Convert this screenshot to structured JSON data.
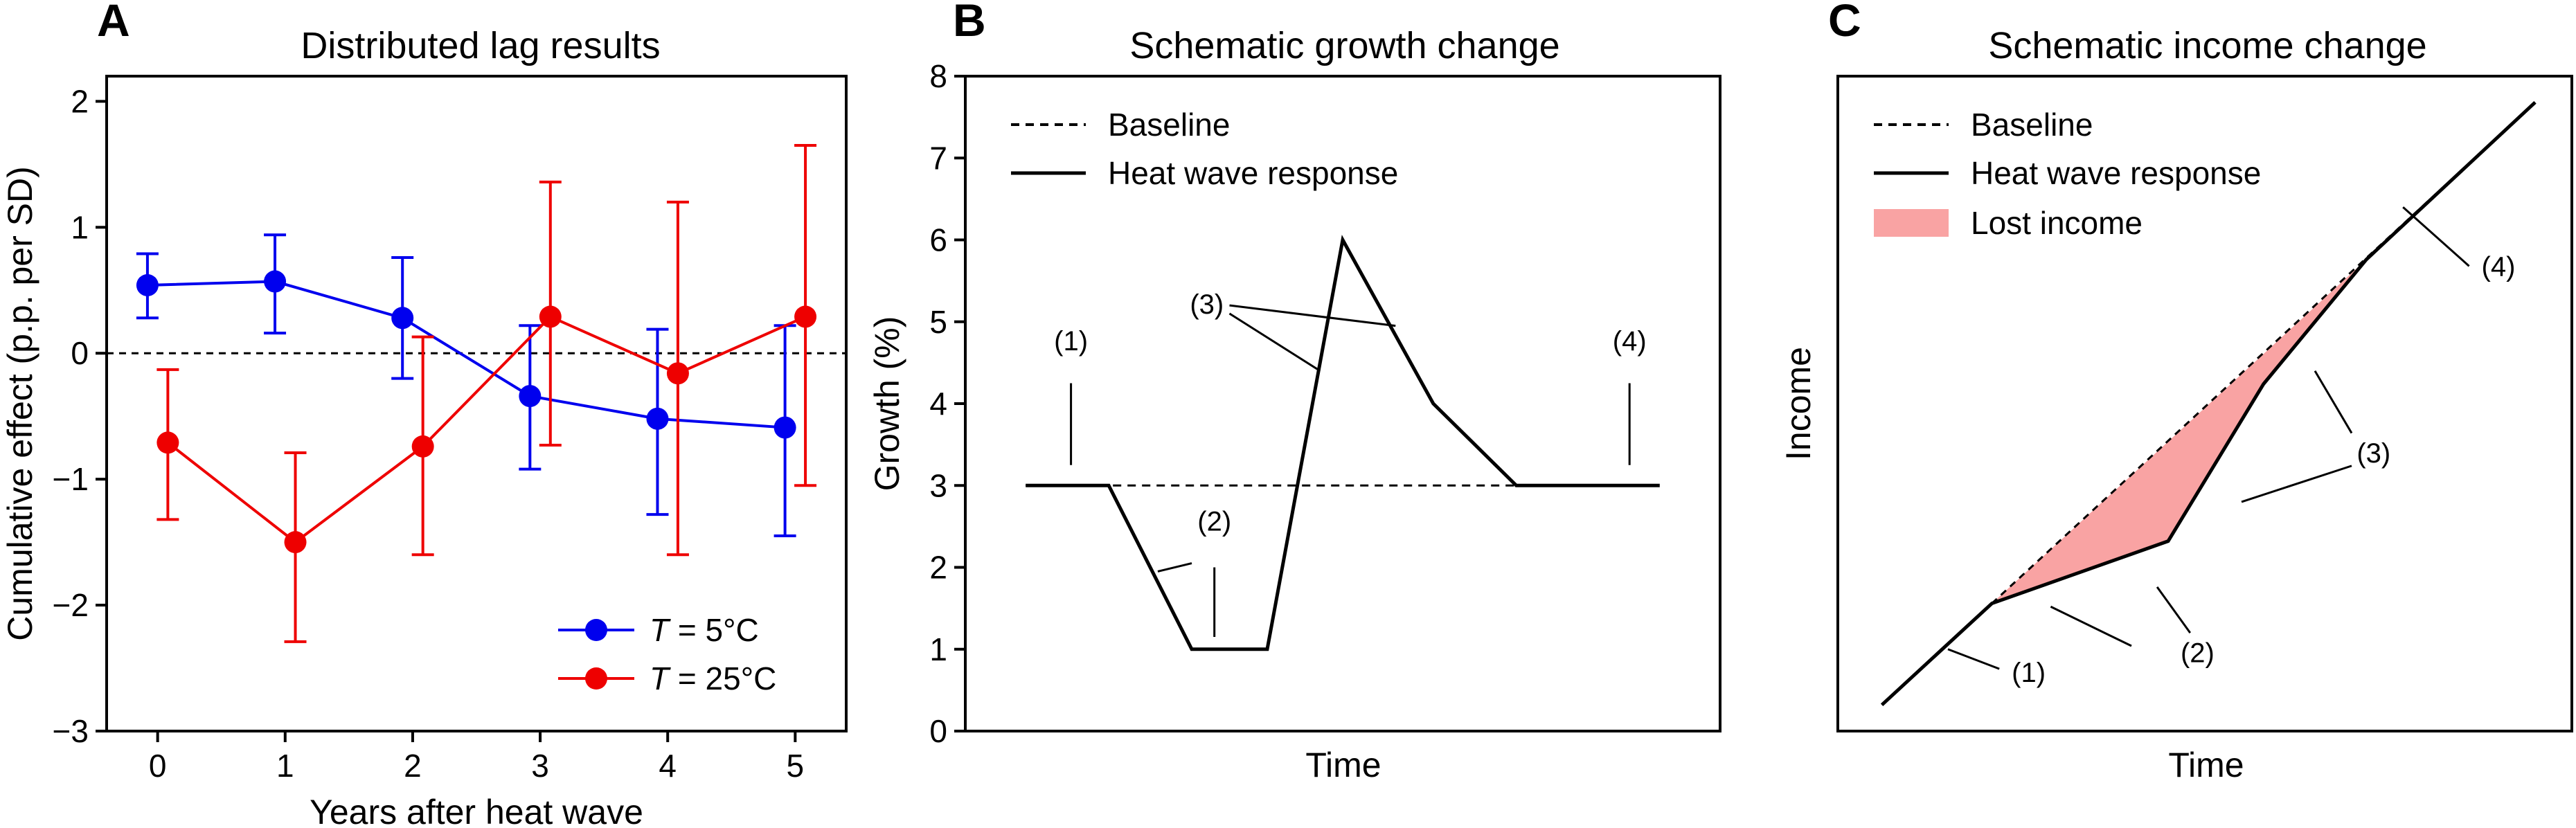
{
  "panels": {
    "a": {
      "label": "A",
      "title": "Distributed lag results"
    },
    "b": {
      "label": "B",
      "title": "Schematic growth change"
    },
    "c": {
      "label": "C",
      "title": "Schematic income change"
    }
  },
  "chart_data": [
    {
      "type": "line",
      "title": "Distributed lag results",
      "xlabel": "Years after heat wave",
      "ylabel": "Cumulative effect (p.p. per SD)",
      "xlim": [
        -0.4,
        5.4
      ],
      "ylim": [
        -3,
        2.2
      ],
      "xticks": [
        0,
        1,
        2,
        3,
        4,
        5
      ],
      "yticks": [
        -3,
        -2,
        -1,
        0,
        1,
        2
      ],
      "ytick_labels": [
        "−3",
        "−2",
        "−1",
        "0",
        "1",
        "2"
      ],
      "reference_line": {
        "y": 0,
        "style": "dashed"
      },
      "legend_position": "bottom-right",
      "series": [
        {
          "name_prefix": "T",
          "name_suffix": " = 5°C",
          "color": "#0000ee",
          "x": [
            0,
            1,
            2,
            3,
            4,
            5
          ],
          "x_offset": -0.08,
          "y": [
            0.54,
            0.57,
            0.28,
            -0.34,
            -0.52,
            -0.59
          ],
          "err_low": [
            0.28,
            0.16,
            -0.2,
            -0.92,
            -1.28,
            -1.45
          ],
          "err_high": [
            0.79,
            0.94,
            0.76,
            0.22,
            0.19,
            0.22
          ]
        },
        {
          "name_prefix": "T",
          "name_suffix": " = 25°C",
          "color": "#ee0000",
          "x": [
            0,
            1,
            2,
            3,
            4,
            5
          ],
          "x_offset": 0.08,
          "y": [
            -0.71,
            -1.5,
            -0.74,
            0.29,
            -0.16,
            0.29
          ],
          "err_low": [
            -1.32,
            -2.29,
            -1.6,
            -0.73,
            -1.6,
            -1.05
          ],
          "err_high": [
            -0.13,
            -0.79,
            0.13,
            1.36,
            1.2,
            1.65
          ]
        }
      ]
    },
    {
      "type": "line",
      "title": "Schematic growth change",
      "xlabel": "Time",
      "ylabel": "Growth (%)",
      "xlim": [
        0,
        10
      ],
      "ylim": [
        0,
        8
      ],
      "yticks": [
        0,
        1,
        2,
        3,
        4,
        5,
        6,
        7,
        8
      ],
      "legend_position": "top-left",
      "series": [
        {
          "name": "Baseline",
          "style": "dashed",
          "x": [
            0.8,
            9.2
          ],
          "y": [
            3,
            3
          ]
        },
        {
          "name": "Heat wave response",
          "style": "solid",
          "x": [
            0.8,
            1.9,
            3.0,
            4.0,
            5.0,
            6.2,
            7.3,
            8.6,
            9.2
          ],
          "y": [
            3,
            3,
            1,
            1,
            6,
            4,
            3,
            3,
            3
          ]
        }
      ],
      "annotations": [
        {
          "text": "(1)",
          "x": 1.4,
          "y": 4.65,
          "pointers": [
            [
              1.4,
              4.25,
              1.4,
              3.25
            ]
          ]
        },
        {
          "text": "(2)",
          "x": 3.3,
          "y": 2.45,
          "pointers": [
            [
              3.0,
              2.05,
              2.55,
              1.95
            ],
            [
              3.3,
              2.0,
              3.3,
              1.15
            ]
          ]
        },
        {
          "text": "(3)",
          "x": 3.2,
          "y": 5.1,
          "pointers": [
            [
              3.5,
              5.1,
              4.7,
              4.4
            ],
            [
              3.5,
              5.2,
              5.7,
              4.95
            ]
          ]
        },
        {
          "text": "(4)",
          "x": 8.8,
          "y": 4.65,
          "pointers": [
            [
              8.8,
              4.25,
              8.8,
              3.25
            ]
          ]
        }
      ]
    },
    {
      "type": "area",
      "title": "Schematic income change",
      "xlabel": "Time",
      "ylabel": "Income",
      "xlim": [
        0,
        10
      ],
      "ylim": [
        0,
        10
      ],
      "legend_position": "top-left",
      "series": [
        {
          "name": "Baseline",
          "style": "dashed",
          "x": [
            0.6,
            9.5
          ],
          "y": [
            0.4,
            9.6
          ]
        },
        {
          "name": "Heat wave response",
          "style": "solid",
          "x": [
            0.6,
            2.1,
            4.5,
            5.8,
            7.2,
            9.5
          ],
          "y": [
            0.4,
            1.95,
            2.9,
            5.3,
            7.2,
            9.6
          ]
        },
        {
          "name": "Lost income",
          "style": "fill",
          "color": "#f9a3a3",
          "x": [
            2.1,
            7.2,
            5.8,
            4.5,
            2.1
          ],
          "y": [
            1.95,
            7.2,
            5.3,
            2.9,
            1.95
          ]
        }
      ],
      "annotations": [
        {
          "text": "(1)",
          "x": 2.6,
          "y": 0.75,
          "pointers": [
            [
              2.2,
              0.95,
              1.5,
              1.25
            ]
          ]
        },
        {
          "text": "(2)",
          "x": 4.9,
          "y": 1.05,
          "pointers": [
            [
              4.0,
              1.3,
              2.9,
              1.9
            ],
            [
              4.8,
              1.5,
              4.35,
              2.2
            ]
          ]
        },
        {
          "text": "(3)",
          "x": 7.3,
          "y": 4.1,
          "pointers": [
            [
              7.0,
              4.05,
              5.5,
              3.5
            ],
            [
              7.0,
              4.55,
              6.5,
              5.5
            ]
          ]
        },
        {
          "text": "(4)",
          "x": 9.0,
          "y": 6.95,
          "pointers": [
            [
              8.6,
              7.1,
              7.7,
              8.0
            ]
          ]
        }
      ]
    }
  ]
}
